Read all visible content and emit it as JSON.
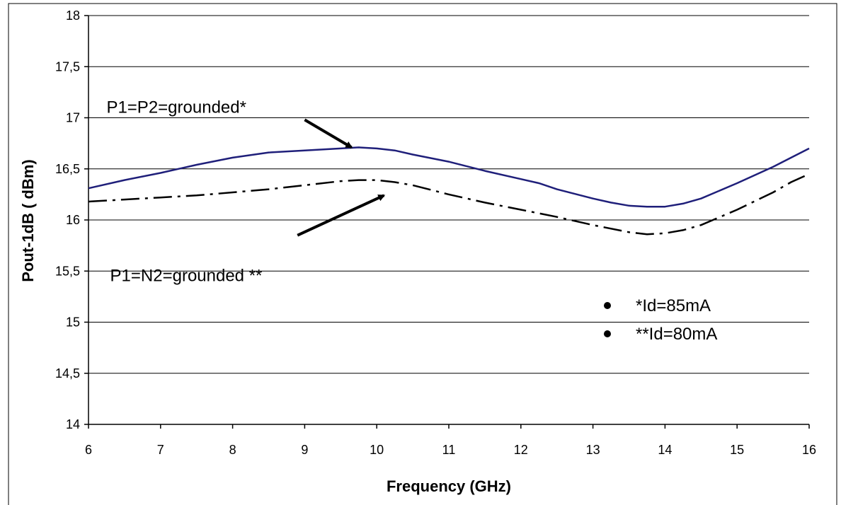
{
  "chart_data": {
    "type": "line",
    "xlabel": "Frequency (GHz)",
    "ylabel": "Pout-1dB ( dBm)",
    "xlim": [
      6,
      16
    ],
    "ylim": [
      14,
      18
    ],
    "x_ticks": [
      "6",
      "7",
      "8",
      "9",
      "10",
      "11",
      "12",
      "13",
      "14",
      "15",
      "16"
    ],
    "y_ticks": [
      "14",
      "14,5",
      "15",
      "15,5",
      "16",
      "16,5",
      "17",
      "17,5",
      "18"
    ],
    "grid": "horizontal",
    "series": [
      {
        "id": "s1",
        "color": "#1f1f7a",
        "style": "solid",
        "x": [
          6,
          6.5,
          7,
          7.5,
          8,
          8.5,
          9,
          9.5,
          9.75,
          10,
          10.25,
          10.5,
          11,
          11.5,
          12,
          12.25,
          12.5,
          13,
          13.25,
          13.5,
          13.75,
          14,
          14.25,
          14.5,
          15,
          15.5,
          15.75,
          16
        ],
        "y": [
          16.31,
          16.39,
          16.46,
          16.54,
          16.61,
          16.66,
          16.68,
          16.7,
          16.71,
          16.7,
          16.68,
          16.64,
          16.57,
          16.48,
          16.4,
          16.36,
          16.3,
          16.21,
          16.17,
          16.14,
          16.13,
          16.13,
          16.16,
          16.21,
          16.36,
          16.52,
          16.61,
          16.7
        ]
      },
      {
        "id": "s2",
        "color": "#000000",
        "style": "dash-dot",
        "x": [
          6,
          6.5,
          7,
          7.5,
          8,
          8.5,
          9,
          9.5,
          9.75,
          10,
          10.25,
          10.5,
          11,
          11.5,
          12,
          12.5,
          13,
          13.5,
          13.75,
          14,
          14.25,
          14.5,
          15,
          15.5,
          15.75,
          16
        ],
        "y": [
          16.18,
          16.2,
          16.22,
          16.24,
          16.27,
          16.3,
          16.34,
          16.38,
          16.39,
          16.39,
          16.37,
          16.34,
          16.25,
          16.17,
          16.1,
          16.03,
          15.95,
          15.88,
          15.86,
          15.87,
          15.9,
          15.95,
          16.1,
          16.27,
          16.37,
          16.45
        ]
      }
    ],
    "annotations": [
      {
        "id": "a1",
        "text": "P1=P2=grounded*",
        "x": 6.25,
        "y": 17.05,
        "arrow_from": [
          9.0,
          16.98
        ],
        "arrow_to": [
          9.65,
          16.71
        ]
      },
      {
        "id": "a2",
        "text": "P1=N2=grounded **",
        "x": 6.3,
        "y": 15.4,
        "arrow_from": [
          8.9,
          15.85
        ],
        "arrow_to": [
          10.1,
          16.24
        ]
      }
    ],
    "legend": {
      "placement": "lower-right",
      "items": [
        {
          "text": "*Id=85mA"
        },
        {
          "text": "**Id=80mA"
        }
      ]
    }
  }
}
